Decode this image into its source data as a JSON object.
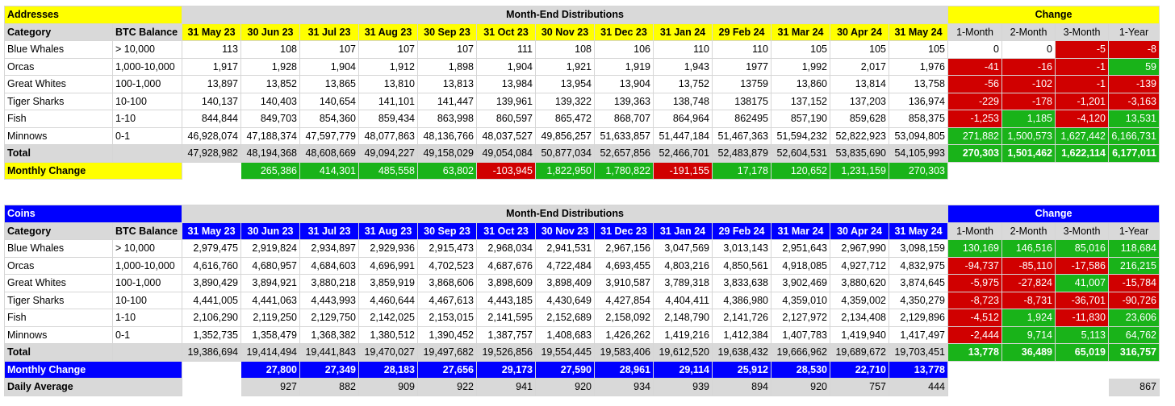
{
  "addresses": {
    "title": "Addresses",
    "distributions_title": "Month-End Distributions",
    "change_title": "Change",
    "category_header": "Category",
    "balance_header": "BTC Balance",
    "months": [
      "31 May 23",
      "30 Jun 23",
      "31 Jul 23",
      "31 Aug 23",
      "30 Sep 23",
      "31 Oct 23",
      "30 Nov 23",
      "31 Dec 23",
      "31 Jan 24",
      "29 Feb 24",
      "31 Mar 24",
      "30 Apr 24",
      "31 May 24"
    ],
    "change_headers": [
      "1-Month",
      "2-Month",
      "3-Month",
      "1-Year"
    ],
    "rows": [
      {
        "category": "Blue Whales",
        "balance": "> 10,000",
        "values": [
          "113",
          "108",
          "107",
          "107",
          "107",
          "111",
          "108",
          "106",
          "110",
          "110",
          "105",
          "105",
          "105"
        ],
        "changes": [
          "0",
          "0",
          "-5",
          "-8"
        ]
      },
      {
        "category": "Orcas",
        "balance": "1,000-10,000",
        "values": [
          "1,917",
          "1,928",
          "1,904",
          "1,912",
          "1,898",
          "1,904",
          "1,921",
          "1,919",
          "1,943",
          "1977",
          "1,992",
          "2,017",
          "1,976"
        ],
        "changes": [
          "-41",
          "-16",
          "-1",
          "59"
        ]
      },
      {
        "category": "Great Whites",
        "balance": "100-1,000",
        "values": [
          "13,897",
          "13,852",
          "13,865",
          "13,810",
          "13,813",
          "13,984",
          "13,954",
          "13,904",
          "13,752",
          "13759",
          "13,860",
          "13,814",
          "13,758"
        ],
        "changes": [
          "-56",
          "-102",
          "-1",
          "-139"
        ]
      },
      {
        "category": "Tiger Sharks",
        "balance": "10-100",
        "values": [
          "140,137",
          "140,403",
          "140,654",
          "141,101",
          "141,447",
          "139,961",
          "139,322",
          "139,363",
          "138,748",
          "138175",
          "137,152",
          "137,203",
          "136,974"
        ],
        "changes": [
          "-229",
          "-178",
          "-1,201",
          "-3,163"
        ]
      },
      {
        "category": "Fish",
        "balance": "1-10",
        "values": [
          "844,844",
          "849,703",
          "854,360",
          "859,434",
          "863,998",
          "860,597",
          "865,472",
          "868,707",
          "864,964",
          "862495",
          "857,190",
          "859,628",
          "858,375"
        ],
        "changes": [
          "-1,253",
          "1,185",
          "-4,120",
          "13,531"
        ]
      },
      {
        "category": "Minnows",
        "balance": "0-1",
        "values": [
          "46,928,074",
          "47,188,374",
          "47,597,779",
          "48,077,863",
          "48,136,766",
          "48,037,527",
          "49,856,257",
          "51,633,857",
          "51,447,184",
          "51,467,363",
          "51,594,232",
          "52,822,923",
          "53,094,805"
        ],
        "changes": [
          "271,882",
          "1,500,573",
          "1,627,442",
          "6,166,731"
        ]
      }
    ],
    "total": {
      "label": "Total",
      "values": [
        "47,928,982",
        "48,194,368",
        "48,608,669",
        "49,094,227",
        "49,158,029",
        "49,054,084",
        "50,877,034",
        "52,657,856",
        "52,466,701",
        "52,483,879",
        "52,604,531",
        "53,835,690",
        "54,105,993"
      ],
      "changes": [
        "270,303",
        "1,501,462",
        "1,622,114",
        "6,177,011"
      ]
    },
    "monthly_change": {
      "label": "Monthly Change",
      "values": [
        "",
        "265,386",
        "414,301",
        "485,558",
        "63,802",
        "-103,945",
        "1,822,950",
        "1,780,822",
        "-191,155",
        "17,178",
        "120,652",
        "1,231,159",
        "270,303"
      ]
    }
  },
  "coins": {
    "title": "Coins",
    "distributions_title": "Month-End Distributions",
    "change_title": "Change",
    "category_header": "Category",
    "balance_header": "BTC Balance",
    "months": [
      "31 May 23",
      "30 Jun 23",
      "31 Jul 23",
      "31 Aug 23",
      "30 Sep 23",
      "31 Oct 23",
      "30 Nov 23",
      "31 Dec 23",
      "31 Jan 24",
      "29 Feb 24",
      "31 Mar 24",
      "30 Apr 24",
      "31 May 24"
    ],
    "change_headers": [
      "1-Month",
      "2-Month",
      "3-Month",
      "1-Year"
    ],
    "rows": [
      {
        "category": "Blue Whales",
        "balance": "> 10,000",
        "values": [
          "2,979,475",
          "2,919,824",
          "2,934,897",
          "2,929,936",
          "2,915,473",
          "2,968,034",
          "2,941,531",
          "2,967,156",
          "3,047,569",
          "3,013,143",
          "2,951,643",
          "2,967,990",
          "3,098,159"
        ],
        "changes": [
          "130,169",
          "146,516",
          "85,016",
          "118,684"
        ]
      },
      {
        "category": "Orcas",
        "balance": "1,000-10,000",
        "values": [
          "4,616,760",
          "4,680,957",
          "4,684,603",
          "4,696,991",
          "4,702,523",
          "4,687,676",
          "4,722,484",
          "4,693,455",
          "4,803,216",
          "4,850,561",
          "4,918,085",
          "4,927,712",
          "4,832,975"
        ],
        "changes": [
          "-94,737",
          "-85,110",
          "-17,586",
          "216,215"
        ]
      },
      {
        "category": "Great Whites",
        "balance": "100-1,000",
        "values": [
          "3,890,429",
          "3,894,921",
          "3,880,218",
          "3,859,919",
          "3,868,606",
          "3,898,609",
          "3,898,409",
          "3,910,587",
          "3,789,318",
          "3,833,638",
          "3,902,469",
          "3,880,620",
          "3,874,645"
        ],
        "changes": [
          "-5,975",
          "-27,824",
          "41,007",
          "-15,784"
        ]
      },
      {
        "category": "Tiger Sharks",
        "balance": "10-100",
        "values": [
          "4,441,005",
          "4,441,063",
          "4,443,993",
          "4,460,644",
          "4,467,613",
          "4,443,185",
          "4,430,649",
          "4,427,854",
          "4,404,411",
          "4,386,980",
          "4,359,010",
          "4,359,002",
          "4,350,279"
        ],
        "changes": [
          "-8,723",
          "-8,731",
          "-36,701",
          "-90,726"
        ]
      },
      {
        "category": "Fish",
        "balance": "1-10",
        "values": [
          "2,106,290",
          "2,119,250",
          "2,129,750",
          "2,142,025",
          "2,153,015",
          "2,141,595",
          "2,152,689",
          "2,158,092",
          "2,148,790",
          "2,141,726",
          "2,127,972",
          "2,134,408",
          "2,129,896"
        ],
        "changes": [
          "-4,512",
          "1,924",
          "-11,830",
          "23,606"
        ]
      },
      {
        "category": "Minnows",
        "balance": "0-1",
        "values": [
          "1,352,735",
          "1,358,479",
          "1,368,382",
          "1,380,512",
          "1,390,452",
          "1,387,757",
          "1,408,683",
          "1,426,262",
          "1,419,216",
          "1,412,384",
          "1,407,783",
          "1,419,940",
          "1,417,497"
        ],
        "changes": [
          "-2,444",
          "9,714",
          "5,113",
          "64,762"
        ]
      }
    ],
    "total": {
      "label": "Total",
      "values": [
        "19,386,694",
        "19,414,494",
        "19,441,843",
        "19,470,027",
        "19,497,682",
        "19,526,856",
        "19,554,445",
        "19,583,406",
        "19,612,520",
        "19,638,432",
        "19,666,962",
        "19,689,672",
        "19,703,451"
      ],
      "changes": [
        "13,778",
        "36,489",
        "65,019",
        "316,757"
      ]
    },
    "monthly_change": {
      "label": "Monthly Change",
      "values": [
        "",
        "27,800",
        "27,349",
        "28,183",
        "27,656",
        "29,173",
        "27,590",
        "28,961",
        "29,114",
        "25,912",
        "28,530",
        "22,710",
        "13,778"
      ]
    },
    "daily_average": {
      "label": "Daily Average",
      "values": [
        "",
        "927",
        "882",
        "909",
        "922",
        "941",
        "920",
        "934",
        "939",
        "894",
        "920",
        "757",
        "444"
      ],
      "year_value": "867"
    }
  },
  "colors": {
    "yellow": "#ffff00",
    "blue": "#0000ff",
    "gray": "#d9d9d9",
    "green": "#19b319",
    "red": "#d00000"
  }
}
